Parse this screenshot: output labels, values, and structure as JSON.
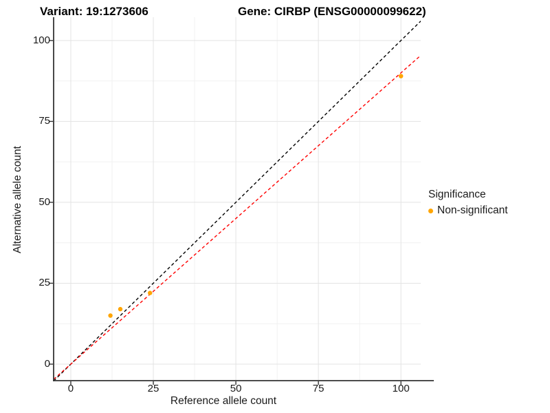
{
  "chart_data": {
    "type": "scatter",
    "title_left": "Variant: 19:1273606",
    "title_right": "Gene: CIRBP (ENSG00000099622)",
    "xlabel": "Reference allele count",
    "ylabel": "Alternative allele count",
    "xlim": [
      -5.2,
      106.0
    ],
    "ylim": [
      -5.1,
      107.2
    ],
    "x_ticks": [
      0,
      25,
      50,
      75,
      100
    ],
    "y_ticks": [
      0,
      25,
      50,
      75,
      100
    ],
    "x_minor": [
      12.5,
      37.5,
      62.5,
      87.5
    ],
    "y_minor": [
      12.5,
      37.5,
      62.5,
      87.5
    ],
    "grid": true,
    "legend": {
      "title": "Significance",
      "position": "right",
      "entries": [
        {
          "label": "Non-significant",
          "color": "#FFA500"
        }
      ]
    },
    "series": [
      {
        "name": "Non-significant",
        "color": "#FFA500",
        "points": [
          [
            12,
            15
          ],
          [
            15,
            17
          ],
          [
            24,
            22
          ],
          [
            100,
            89
          ]
        ]
      }
    ],
    "ref_lines": [
      {
        "name": "identity-line",
        "slope": 1.0,
        "intercept": 0,
        "color": "#000000",
        "style": "dashed"
      },
      {
        "name": "fit-line",
        "slope": 0.9,
        "intercept": 0,
        "color": "#FF0000",
        "style": "dashed"
      }
    ]
  },
  "colors": {
    "point": "#FFA500",
    "identity_line": "#000000",
    "fit_line": "#FF0000",
    "grid_major": "#E3E3E3",
    "grid_minor": "#F1F1F1",
    "axis_line": "#333333",
    "text": "#1A1A1A"
  }
}
